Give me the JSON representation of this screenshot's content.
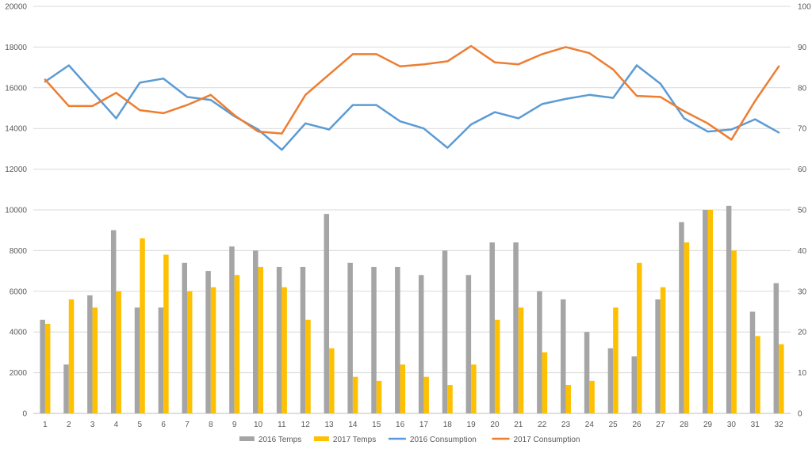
{
  "chart_data": {
    "type": "bar",
    "x": [
      1,
      2,
      3,
      4,
      5,
      6,
      7,
      8,
      9,
      10,
      11,
      12,
      13,
      14,
      15,
      16,
      17,
      18,
      19,
      20,
      21,
      22,
      23,
      24,
      25,
      26,
      27,
      28,
      29,
      30,
      31,
      32
    ],
    "left_axis": {
      "min": 0,
      "max": 20000,
      "step": 2000,
      "ticks": [
        "0",
        "2000",
        "4000",
        "6000",
        "8000",
        "10000",
        "12000",
        "14000",
        "16000",
        "18000",
        "20000"
      ]
    },
    "right_axis": {
      "min": 0,
      "max": 100,
      "step": 10,
      "ticks": [
        "0",
        "10",
        "20",
        "30",
        "40",
        "50",
        "60",
        "70",
        "80",
        "90",
        "100"
      ]
    },
    "grid": true,
    "legend_position": "bottom",
    "series": [
      {
        "name": "2016 Temps",
        "kind": "bar",
        "axis": "right",
        "color": "#a5a5a5",
        "values": [
          23,
          12,
          29,
          45,
          26,
          26,
          37,
          35,
          41,
          40,
          36,
          36,
          49,
          37,
          36,
          36,
          34,
          40,
          34,
          42,
          42,
          30,
          28,
          20,
          16,
          14,
          28,
          47,
          50,
          51,
          25,
          32
        ]
      },
      {
        "name": "2017 Temps",
        "kind": "bar",
        "axis": "right",
        "color": "#ffc000",
        "values": [
          22,
          28,
          26,
          30,
          43,
          39,
          30,
          31,
          34,
          36,
          31,
          23,
          16,
          9,
          8,
          12,
          9,
          7,
          12,
          23,
          26,
          15,
          7,
          8,
          26,
          37,
          31,
          42,
          50,
          40,
          19,
          17
        ]
      },
      {
        "name": "2016 Consumption",
        "kind": "line",
        "axis": "left",
        "color": "#5b9bd5",
        "values": [
          16300,
          17100,
          15800,
          14500,
          16250,
          16450,
          15550,
          15400,
          14600,
          13950,
          12950,
          14250,
          13950,
          15150,
          15150,
          14350,
          14000,
          13050,
          14200,
          14800,
          14500,
          15200,
          15450,
          15650,
          15500,
          17100,
          16200,
          14500,
          13850,
          13950,
          14450,
          13800
        ]
      },
      {
        "name": "2017 Consumption",
        "kind": "line",
        "axis": "left",
        "color": "#ed7d31",
        "values": [
          16400,
          15100,
          15100,
          15750,
          14900,
          14750,
          15150,
          15650,
          14650,
          13850,
          13750,
          15650,
          16650,
          17650,
          17650,
          17050,
          17150,
          17300,
          18050,
          17250,
          17150,
          17650,
          18000,
          17700,
          16900,
          15600,
          15550,
          14850,
          14250,
          13450,
          15350,
          17050
        ]
      }
    ]
  }
}
